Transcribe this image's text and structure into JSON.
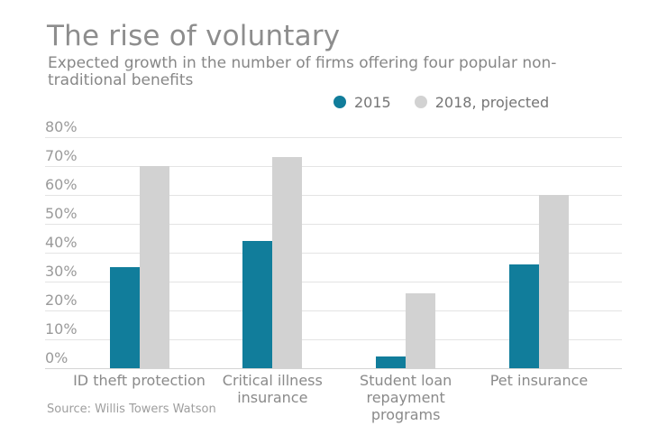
{
  "chart_data": {
    "type": "bar",
    "title": "The rise of voluntary",
    "subtitle": "Expected growth in the number of firms offering four popular non-traditional benefits",
    "source": "Source: Willis Towers Watson",
    "categories": [
      "ID theft protection",
      "Critical illness insurance",
      "Student loan repayment programs",
      "Pet insurance"
    ],
    "category_label_lines": [
      [
        "ID theft protection"
      ],
      [
        "Critical illness",
        "insurance"
      ],
      [
        "Student loan",
        "repayment",
        "programs"
      ],
      [
        "Pet insurance"
      ]
    ],
    "series": [
      {
        "name": "2015",
        "color": "#117d9b",
        "values": [
          35,
          44,
          4,
          36
        ]
      },
      {
        "name": "2018, projected",
        "color": "#d2d2d2",
        "values": [
          70,
          73,
          26,
          60
        ]
      }
    ],
    "xlabel": "",
    "ylabel": "",
    "ylim": [
      0,
      80
    ],
    "y_tick_labels": [
      "80%",
      "70%",
      "60%",
      "50%",
      "40%",
      "30%",
      "20%",
      "10%",
      "0%"
    ],
    "grid": true,
    "legend_position": "top-right"
  },
  "colors": {
    "series_2015": "#117d9b",
    "series_2018": "#d2d2d2",
    "grid_line": "#e4e4e4",
    "axis_line": "#d4d4d4",
    "title_text": "#8d8d8d",
    "subtitle_text": "#878787",
    "tick_text": "#9a9a9a",
    "legend_text": "#757575",
    "category_text": "#8a8a8a",
    "source_text": "#9e9e9e",
    "background": "#ffffff"
  }
}
